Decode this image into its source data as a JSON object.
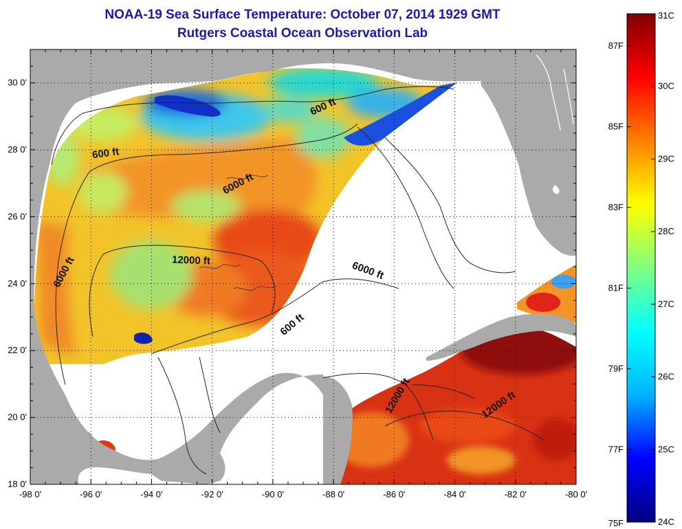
{
  "title": "NOAA-19 Sea Surface Temperature:  October 07, 2014 1929 GMT",
  "subtitle": "Rutgers Coastal Ocean Observation Lab",
  "map": {
    "lon_range": [
      -98,
      -80
    ],
    "lat_range": [
      18,
      31
    ],
    "lon_ticks": [
      {
        "v": -98,
        "label": "-98 0'"
      },
      {
        "v": -96,
        "label": "-96 0'"
      },
      {
        "v": -94,
        "label": "-94 0'"
      },
      {
        "v": -92,
        "label": "-92 0'"
      },
      {
        "v": -90,
        "label": "-90 0'"
      },
      {
        "v": -88,
        "label": "-88 0'"
      },
      {
        "v": -86,
        "label": "-86 0'"
      },
      {
        "v": -84,
        "label": "-84 0'"
      },
      {
        "v": -82,
        "label": "-82 0'"
      },
      {
        "v": -80,
        "label": "-80 0'"
      }
    ],
    "lat_ticks": [
      {
        "v": 18,
        "label": "18 0'"
      },
      {
        "v": 20,
        "label": "20 0'"
      },
      {
        "v": 22,
        "label": "22 0'"
      },
      {
        "v": 24,
        "label": "24 0'"
      },
      {
        "v": 26,
        "label": "26 0'"
      },
      {
        "v": 28,
        "label": "28 0'"
      },
      {
        "v": 30,
        "label": "30 0'"
      }
    ],
    "grid": "dotted",
    "contour_labels": [
      {
        "text": "600 ft",
        "lon": -95.5,
        "lat": 27.8,
        "rot": -8
      },
      {
        "text": "6000 ft",
        "lon": -91.1,
        "lat": 26.9,
        "rot": -28
      },
      {
        "text": "600 ft",
        "lon": -88.3,
        "lat": 29.2,
        "rot": -25
      },
      {
        "text": "12000 ft",
        "lon": -92.7,
        "lat": 24.6,
        "rot": 2
      },
      {
        "text": "6000 ft",
        "lon": -96.8,
        "lat": 24.3,
        "rot": -62
      },
      {
        "text": "6000 ft",
        "lon": -86.9,
        "lat": 24.3,
        "rot": 20
      },
      {
        "text": "600 ft",
        "lon": -89.3,
        "lat": 22.7,
        "rot": -40
      },
      {
        "text": "12000 ft",
        "lon": -85.8,
        "lat": 20.6,
        "rot": -60
      },
      {
        "text": "12000 ft",
        "lon": -82.5,
        "lat": 20.3,
        "rot": -35
      }
    ]
  },
  "colorbar": {
    "min_c": 24,
    "max_c": 31,
    "colors": [
      "#000080",
      "#0000ff",
      "#00b4ff",
      "#00ffff",
      "#80ff80",
      "#ffff00",
      "#ff8000",
      "#ff0000",
      "#800000"
    ],
    "celsius_labels": [
      {
        "v": 31,
        "label": "31C"
      },
      {
        "v": 30,
        "label": "30C"
      },
      {
        "v": 29,
        "label": "29C"
      },
      {
        "v": 28,
        "label": "28C"
      },
      {
        "v": 27,
        "label": "27C"
      },
      {
        "v": 26,
        "label": "26C"
      },
      {
        "v": 25,
        "label": "25C"
      },
      {
        "v": 24,
        "label": "24C"
      }
    ],
    "fahrenheit_labels": [
      {
        "v": 87,
        "label": "87F"
      },
      {
        "v": 85,
        "label": "85F"
      },
      {
        "v": 83,
        "label": "83F"
      },
      {
        "v": 81,
        "label": "81F"
      },
      {
        "v": 79,
        "label": "79F"
      },
      {
        "v": 77,
        "label": "77F"
      },
      {
        "v": 75,
        "label": "75F"
      }
    ]
  }
}
